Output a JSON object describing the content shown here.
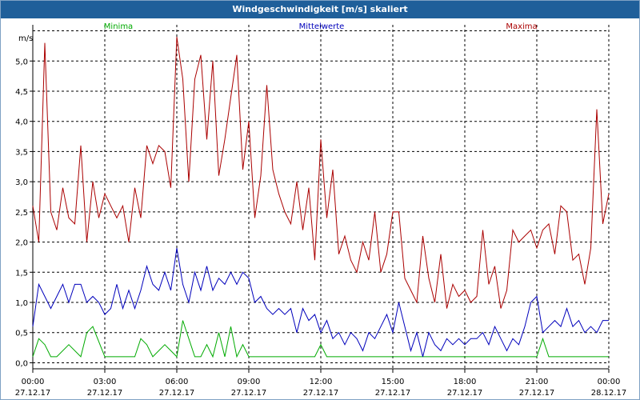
{
  "window": {
    "title": "Windgeschwindigkeit [m/s] skaliert"
  },
  "chart_data": {
    "type": "line",
    "title": "Windgeschwindigkeit [m/s] skaliert",
    "ylabel": "m/s",
    "xlabel": "",
    "ylim": [
      -0.1,
      5.6
    ],
    "xlim": [
      0,
      24
    ],
    "grid": true,
    "legend_position": "top",
    "y_ticks": [
      "0,0",
      "0,5",
      "1,0",
      "1,5",
      "2,0",
      "2,5",
      "3,0",
      "3,5",
      "4,0",
      "4,5",
      "5,0"
    ],
    "y_tick_values": [
      0,
      0.5,
      1,
      1.5,
      2,
      2.5,
      3,
      3.5,
      4,
      4.5,
      5
    ],
    "x_tick_times": [
      "00:00",
      "03:00",
      "06:00",
      "09:00",
      "12:00",
      "15:00",
      "18:00",
      "21:00",
      "00:00"
    ],
    "x_tick_dates": [
      "27.12.17",
      "27.12.17",
      "27.12.17",
      "27.12.17",
      "27.12.17",
      "27.12.17",
      "27.12.17",
      "27.12.17",
      "28.12.17"
    ],
    "x_tick_values": [
      0,
      3,
      6,
      9,
      12,
      15,
      18,
      21,
      24
    ],
    "series": [
      {
        "name": "Minima",
        "color": "#00aa00",
        "x": [
          0,
          0.25,
          0.5,
          0.75,
          1,
          1.5,
          2,
          2.25,
          2.5,
          3,
          4.25,
          4.5,
          4.75,
          5,
          5.5,
          6,
          6.25,
          6.5,
          6.75,
          7,
          7.25,
          7.5,
          7.75,
          8,
          8.25,
          8.5,
          8.75,
          9,
          9.25,
          11.75,
          12,
          12.25,
          21,
          21.25,
          21.5,
          24
        ],
        "y": [
          0.1,
          0.4,
          0.3,
          0.1,
          0.1,
          0.3,
          0.1,
          0.5,
          0.6,
          0.1,
          0.1,
          0.4,
          0.3,
          0.1,
          0.3,
          0.1,
          0.7,
          0.4,
          0.1,
          0.1,
          0.3,
          0.1,
          0.5,
          0.1,
          0.6,
          0.1,
          0.3,
          0.1,
          0.1,
          0.1,
          0.3,
          0.1,
          0.1,
          0.4,
          0.1,
          0.1
        ]
      },
      {
        "name": "Mittelwerte",
        "color": "#0000bb",
        "x": [
          0,
          0.25,
          0.5,
          0.75,
          1,
          1.25,
          1.5,
          1.75,
          2,
          2.25,
          2.5,
          2.75,
          3,
          3.25,
          3.5,
          3.75,
          4,
          4.25,
          4.5,
          4.75,
          5,
          5.25,
          5.5,
          5.75,
          6,
          6.25,
          6.5,
          6.75,
          7,
          7.25,
          7.5,
          7.75,
          8,
          8.25,
          8.5,
          8.75,
          9,
          9.25,
          9.5,
          9.75,
          10,
          10.25,
          10.5,
          10.75,
          11,
          11.25,
          11.5,
          11.75,
          12,
          12.25,
          12.5,
          12.75,
          13,
          13.25,
          13.5,
          13.75,
          14,
          14.25,
          14.5,
          14.75,
          15,
          15.25,
          15.5,
          15.75,
          16,
          16.25,
          16.5,
          16.75,
          17,
          17.25,
          17.5,
          17.75,
          18,
          18.25,
          18.5,
          18.75,
          19,
          19.25,
          19.5,
          19.75,
          20,
          20.25,
          20.5,
          20.75,
          21,
          21.25,
          21.5,
          21.75,
          22,
          22.25,
          22.5,
          22.75,
          23,
          23.25,
          23.5,
          23.75,
          24
        ],
        "y": [
          0.6,
          1.3,
          1.1,
          0.9,
          1.1,
          1.3,
          1.0,
          1.3,
          1.3,
          1.0,
          1.1,
          1.0,
          0.8,
          0.9,
          1.3,
          0.9,
          1.2,
          0.9,
          1.2,
          1.6,
          1.3,
          1.2,
          1.5,
          1.2,
          1.9,
          1.3,
          1.0,
          1.5,
          1.2,
          1.6,
          1.2,
          1.4,
          1.3,
          1.5,
          1.3,
          1.5,
          1.4,
          1.0,
          1.1,
          0.9,
          0.8,
          0.9,
          0.8,
          0.9,
          0.5,
          0.9,
          0.7,
          0.8,
          0.5,
          0.7,
          0.4,
          0.5,
          0.3,
          0.5,
          0.4,
          0.2,
          0.5,
          0.4,
          0.6,
          0.8,
          0.5,
          1.0,
          0.6,
          0.2,
          0.5,
          0.1,
          0.5,
          0.3,
          0.2,
          0.4,
          0.3,
          0.4,
          0.3,
          0.4,
          0.4,
          0.5,
          0.3,
          0.6,
          0.4,
          0.2,
          0.4,
          0.3,
          0.6,
          1.0,
          1.1,
          0.5,
          0.6,
          0.7,
          0.6,
          0.9,
          0.6,
          0.7,
          0.5,
          0.6,
          0.5,
          0.7,
          0.7
        ]
      },
      {
        "name": "Maxima",
        "color": "#aa0000",
        "x": [
          0,
          0.25,
          0.5,
          0.75,
          1,
          1.25,
          1.5,
          1.75,
          2,
          2.25,
          2.5,
          2.75,
          3,
          3.25,
          3.5,
          3.75,
          4,
          4.25,
          4.5,
          4.75,
          5,
          5.25,
          5.5,
          5.75,
          6,
          6.25,
          6.5,
          6.75,
          7,
          7.25,
          7.5,
          7.75,
          8,
          8.25,
          8.5,
          8.75,
          9,
          9.25,
          9.5,
          9.75,
          10,
          10.25,
          10.5,
          10.75,
          11,
          11.25,
          11.5,
          11.75,
          12,
          12.25,
          12.5,
          12.75,
          13,
          13.25,
          13.5,
          13.75,
          14,
          14.25,
          14.5,
          14.75,
          15,
          15.25,
          15.5,
          15.75,
          16,
          16.25,
          16.5,
          16.75,
          17,
          17.25,
          17.5,
          17.75,
          18,
          18.25,
          18.5,
          18.75,
          19,
          19.25,
          19.5,
          19.75,
          20,
          20.25,
          20.5,
          20.75,
          21,
          21.25,
          21.5,
          21.75,
          22,
          22.25,
          22.5,
          22.75,
          23,
          23.25,
          23.5,
          23.75,
          24
        ],
        "y": [
          2.6,
          2.0,
          5.3,
          2.5,
          2.2,
          2.9,
          2.4,
          2.3,
          3.6,
          2.0,
          3.0,
          2.4,
          2.8,
          2.6,
          2.4,
          2.6,
          2.0,
          2.9,
          2.4,
          3.6,
          3.3,
          3.6,
          3.5,
          2.9,
          5.4,
          4.7,
          3.0,
          4.7,
          5.1,
          3.7,
          5.0,
          3.1,
          3.7,
          4.4,
          5.1,
          3.2,
          4.0,
          2.4,
          3.1,
          4.6,
          3.2,
          2.8,
          2.5,
          2.3,
          3.0,
          2.2,
          2.9,
          1.7,
          3.7,
          2.4,
          3.2,
          1.8,
          2.1,
          1.7,
          1.5,
          2.0,
          1.7,
          2.5,
          1.5,
          1.8,
          2.5,
          2.5,
          1.4,
          1.2,
          1.0,
          2.1,
          1.4,
          1.0,
          1.8,
          0.9,
          1.3,
          1.1,
          1.2,
          1.0,
          1.1,
          2.2,
          1.3,
          1.6,
          0.9,
          1.2,
          2.2,
          2.0,
          2.1,
          2.2,
          1.9,
          2.2,
          2.3,
          1.8,
          2.6,
          2.5,
          1.7,
          1.8,
          1.3,
          1.9,
          4.2,
          2.3,
          2.8
        ]
      }
    ]
  }
}
